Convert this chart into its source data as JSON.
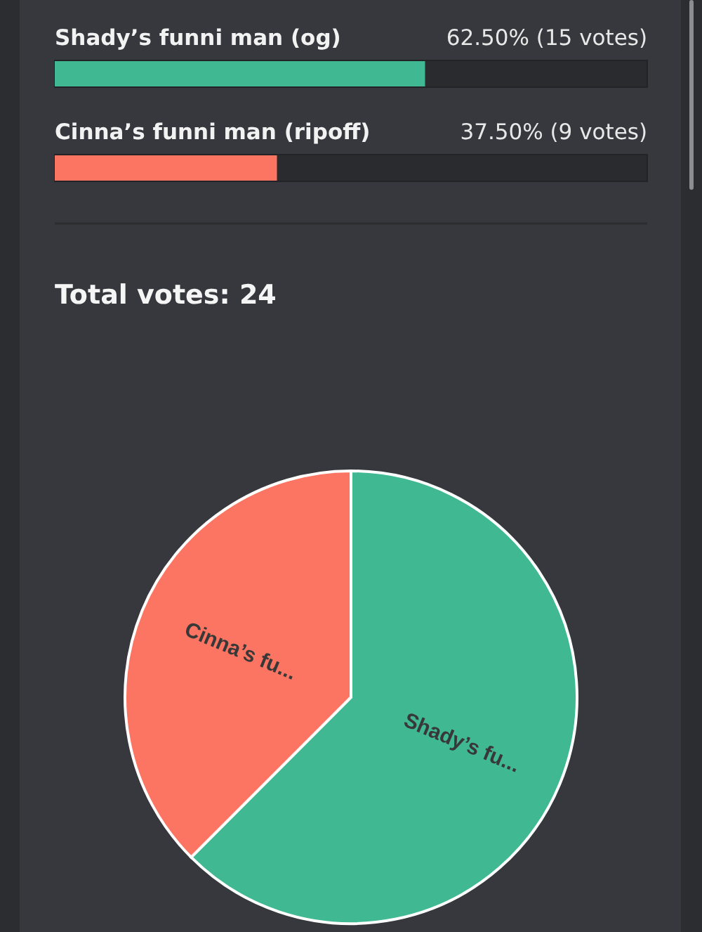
{
  "chart_data": [
    {
      "type": "bar",
      "orientation": "horizontal",
      "categories": [
        "Shady’s funni man (og)",
        "Cinna’s funni man (ripoff)"
      ],
      "values": [
        62.5,
        37.5
      ],
      "colors": [
        "#40b992",
        "#fc7562"
      ],
      "value_labels": [
        "62.50% (15 votes)",
        "37.50% (9 votes)"
      ],
      "xlim": [
        0,
        100
      ],
      "tick_labels": "y"
    },
    {
      "type": "pie",
      "title": "Total votes: 24",
      "categories": [
        "Shady’s fu...",
        "Cinna’s fu..."
      ],
      "values": [
        62.5,
        37.5
      ],
      "colors": [
        "#40b992",
        "#fc7562"
      ]
    }
  ]
}
